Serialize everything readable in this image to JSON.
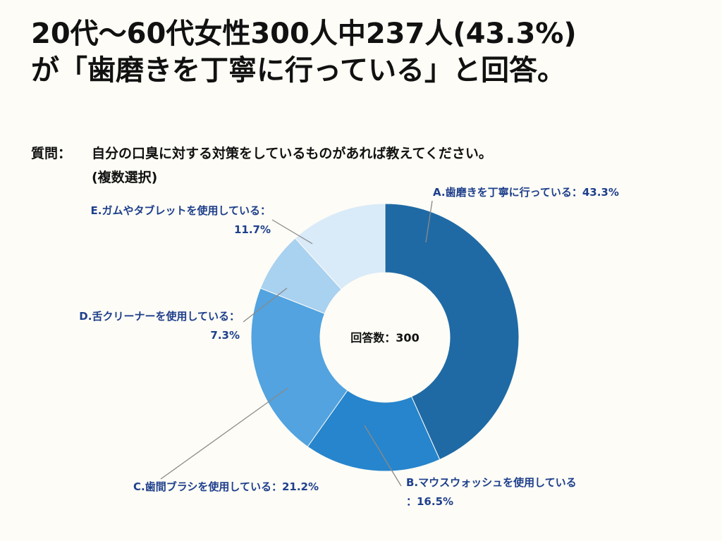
{
  "headline": {
    "line1": "20代〜60代女性300人中237人(43.3%)",
    "line2": "が「歯磨きを丁寧に行っている」と回答。"
  },
  "question": {
    "label": "質問：",
    "line1": "自分の口臭に対する対策をしているものがあれば教えてください。",
    "line2": "(複数選択)"
  },
  "chart_data": {
    "type": "pie",
    "donut": true,
    "center_label": "回答数：300",
    "slices": [
      {
        "name": "A.歯磨きを丁寧に行っている",
        "value": 43.3,
        "label": "A.歯磨きを丁寧に行っている：43.3%",
        "color": "#1f6aa5"
      },
      {
        "name": "B.マウスウォッシュを使用している",
        "value": 16.5,
        "label_lines": [
          "B.マウスウォッシュを使用している",
          "：16.5%"
        ],
        "color": "#2685cc"
      },
      {
        "name": "C.歯間ブラシを使用している",
        "value": 21.2,
        "label": "C.歯間ブラシを使用している：21.2%",
        "color": "#52a3e0"
      },
      {
        "name": "D.舌クリーナーを使用している",
        "value": 7.3,
        "label_lines": [
          "D.舌クリーナーを使用している：",
          "7.3%"
        ],
        "color": "#a9d1f0"
      },
      {
        "name": "E.ガムやタブレットを使用している",
        "value": 11.7,
        "label_lines": [
          "E.ガムやタブレットを使用している：",
          "11.7%"
        ],
        "color": "#d9eaf8"
      }
    ]
  }
}
